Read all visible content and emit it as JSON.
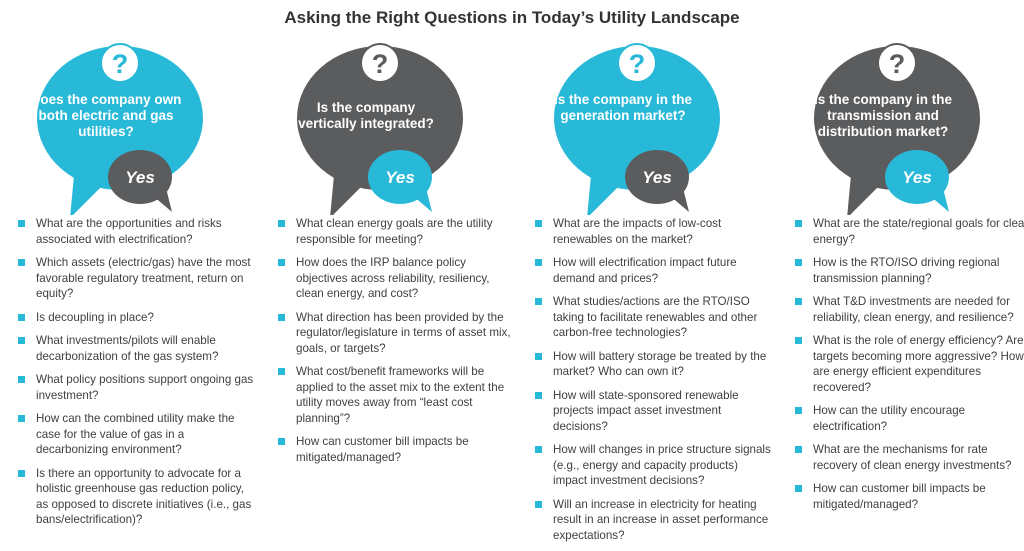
{
  "title": "Asking the Right Questions in Today’s Utility Landscape",
  "colors": {
    "teal": "#29b9d8",
    "gray": "#5b5c5e",
    "text": "#3f3f3f"
  },
  "columns": [
    {
      "bubble_color": "teal",
      "answer_color": "gray",
      "question": "Does the company own both electric and gas utilities?",
      "answer": "Yes",
      "items": [
        "What are the opportunities and risks associated with electrification?",
        "Which assets (electric/gas) have the most favorable regulatory treatment, return on equity?",
        "Is decoupling in place?",
        "What investments/pilots will enable decarbonization of the gas system?",
        "What policy positions support ongoing gas investment?",
        "How can the combined utility make the case for the value of gas in a decarbonizing environment?",
        "Is there an opportunity to advocate for a holistic greenhouse gas reduction policy, as opposed to discrete initiatives (i.e., gas bans/electrification)?"
      ]
    },
    {
      "bubble_color": "gray",
      "answer_color": "teal",
      "question": "Is the company vertically integrated?",
      "answer": "Yes",
      "items": [
        "What clean energy goals are the utility responsible for meeting?",
        "How does the IRP balance policy objectives across reliability, resiliency, clean energy, and cost?",
        "What direction has been provided by the regulator/legislature in terms of asset mix, goals, or targets?",
        "What cost/benefit frameworks will be applied to the asset mix to the extent the utility moves away from “least cost planning”?",
        "How can customer bill impacts be mitigated/managed?"
      ]
    },
    {
      "bubble_color": "teal",
      "answer_color": "gray",
      "question": "Is the company in the generation market?",
      "answer": "Yes",
      "items": [
        "What are the impacts of low-cost renewables on the market?",
        "How will electrification impact future demand and prices?",
        "What studies/actions are the RTO/ISO taking to facilitate renewables and other carbon-free technologies?",
        "How will battery storage be treated by the market? Who can own it?",
        "How will state-sponsored renewable projects impact asset investment decisions?",
        "How will changes in price structure signals (e.g., energy and capacity products) impact investment decisions?",
        "Will an increase in electricity for heating result in an increase in asset performance expectations?"
      ]
    },
    {
      "bubble_color": "gray",
      "answer_color": "teal",
      "question": "Is the company in the transmission and distribution market?",
      "answer": "Yes",
      "items": [
        "What are the state/regional goals for clean energy?",
        "How is the RTO/ISO driving regional transmission planning?",
        "What T&D investments are needed for reliability, clean energy, and resilience?",
        "What is the role of energy efficiency? Are targets becoming more aggressive? How are energy efficient expenditures recovered?",
        "How can the utility encourage electrification?",
        "What are the mechanisms for rate recovery of clean energy investments?",
        "How can customer bill impacts be mitigated/managed?"
      ]
    }
  ]
}
